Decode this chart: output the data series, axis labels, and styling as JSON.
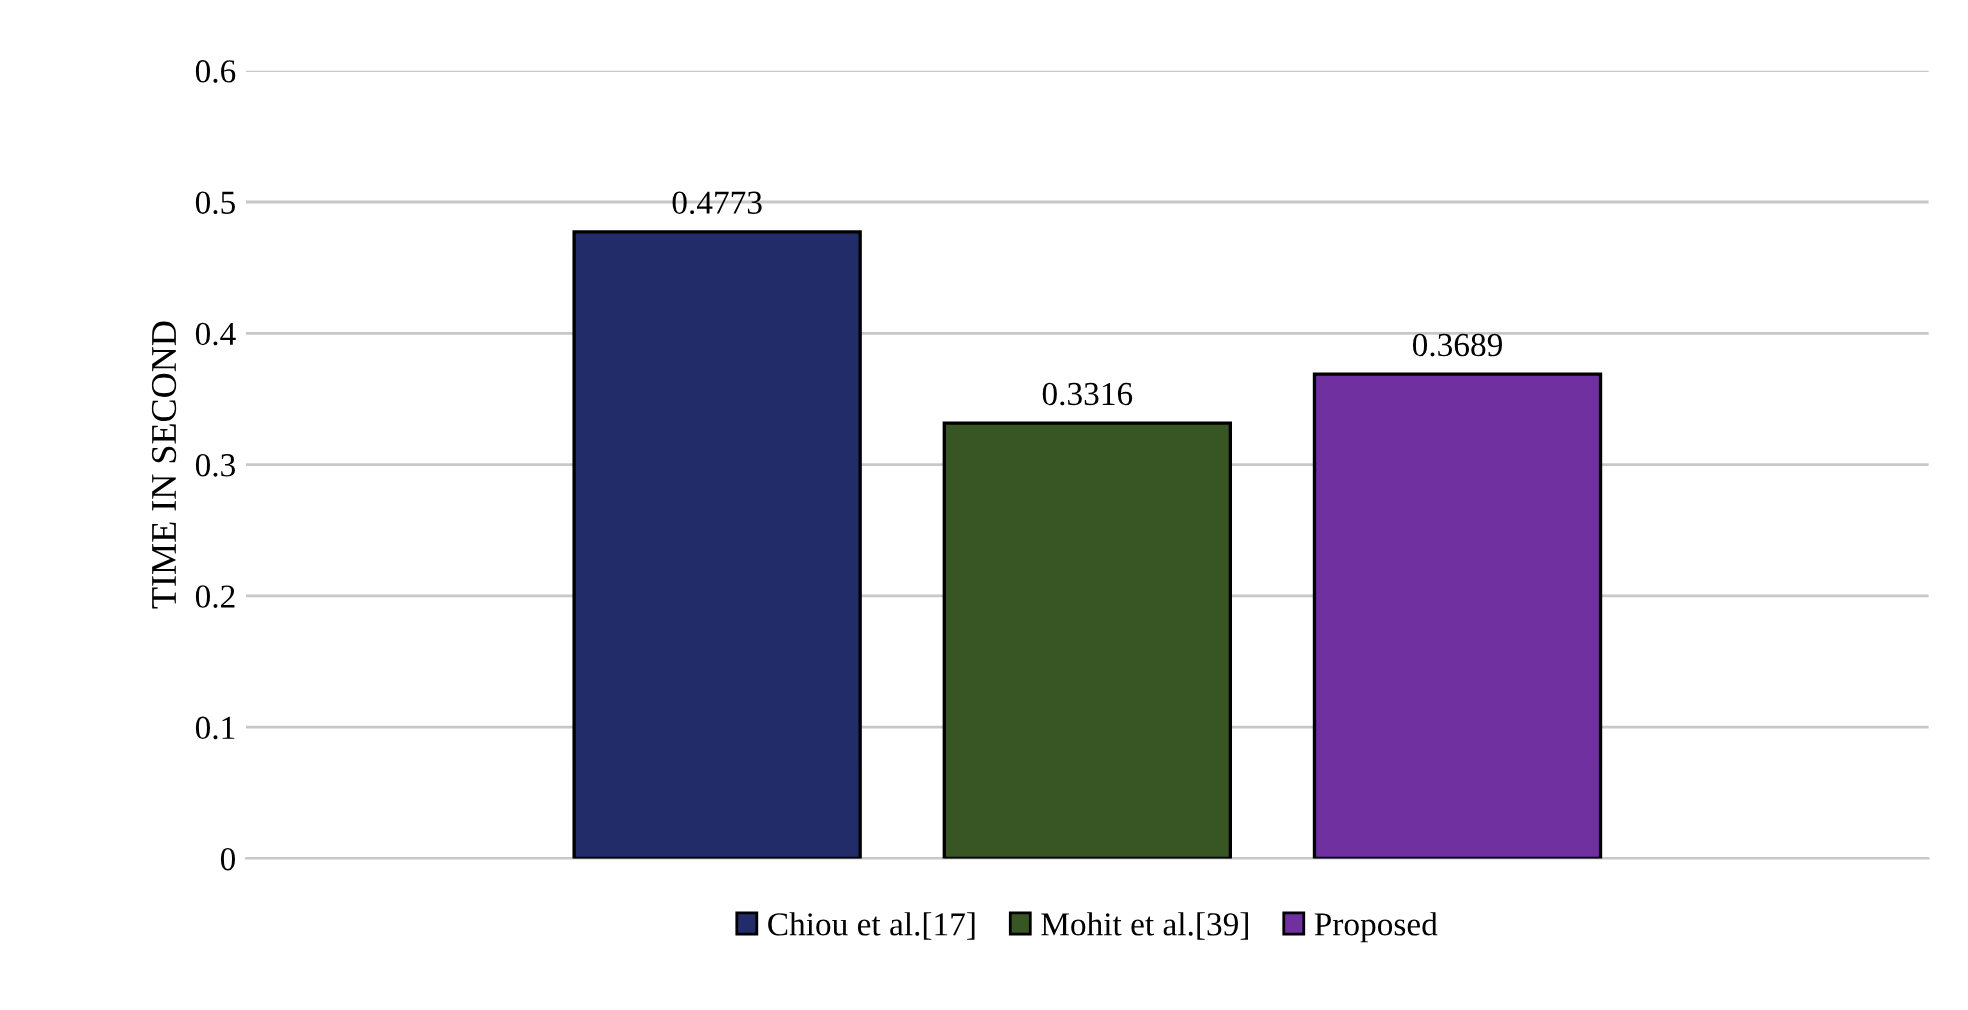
{
  "chart_data": {
    "type": "bar",
    "ylabel": "TIME IN SECOND",
    "categories": [
      null
    ],
    "series": [
      {
        "name": "Chiou et al.[17]",
        "color": "#222c68",
        "values": [
          0.4773
        ]
      },
      {
        "name": "Mohit et al.[39]",
        "color": "#375623",
        "values": [
          0.3316
        ]
      },
      {
        "name": "Proposed",
        "color": "#7030a0",
        "values": [
          0.3689
        ]
      }
    ],
    "ylim": [
      0,
      0.6
    ],
    "yticks": [
      0,
      0.1,
      0.2,
      0.3,
      0.4,
      0.5,
      0.6
    ],
    "grid": "y",
    "legend": "bottom",
    "data_labels": true
  }
}
